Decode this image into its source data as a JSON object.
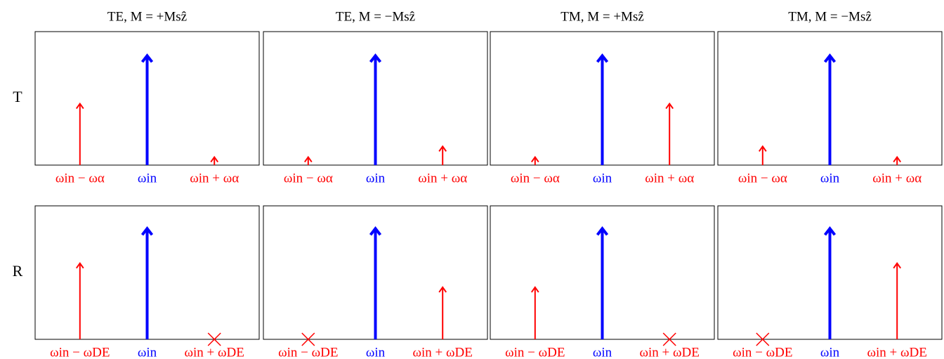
{
  "column_titles": [
    "TE,  M = +Msẑ",
    "TE,  M = −Msẑ",
    "TM,  M = +Msẑ",
    "TM,  M = −Msẑ"
  ],
  "row_labels": [
    "T",
    "R"
  ],
  "chart_data": [
    {
      "type": "arrow",
      "categories": [
        "ωin − ωα",
        "ωin",
        "ωin + ωα"
      ],
      "values": [
        0.46,
        0.82,
        0.06
      ],
      "colors": [
        "#ff0000",
        "#0000ff",
        "#ff0000"
      ],
      "ylim": [
        0,
        1
      ]
    },
    {
      "type": "arrow",
      "categories": [
        "ωin − ωα",
        "ωin",
        "ωin + ωα"
      ],
      "values": [
        0.06,
        0.82,
        0.14
      ],
      "colors": [
        "#ff0000",
        "#0000ff",
        "#ff0000"
      ],
      "ylim": [
        0,
        1
      ]
    },
    {
      "type": "arrow",
      "categories": [
        "ωin − ωα",
        "ωin",
        "ωin + ωα"
      ],
      "values": [
        0.06,
        0.82,
        0.46
      ],
      "colors": [
        "#ff0000",
        "#0000ff",
        "#ff0000"
      ],
      "ylim": [
        0,
        1
      ]
    },
    {
      "type": "arrow",
      "categories": [
        "ωin − ωα",
        "ωin",
        "ωin + ωα"
      ],
      "values": [
        0.14,
        0.82,
        0.06
      ],
      "colors": [
        "#ff0000",
        "#0000ff",
        "#ff0000"
      ],
      "ylim": [
        0,
        1
      ]
    },
    {
      "type": "arrow",
      "categories": [
        "ωin − ωDE",
        "ωin",
        "ωin + ωDE"
      ],
      "values": [
        0.57,
        0.83,
        0
      ],
      "colors": [
        "#ff0000",
        "#0000ff",
        "#ff0000"
      ],
      "ylim": [
        0,
        1
      ]
    },
    {
      "type": "arrow",
      "categories": [
        "ωin − ωDE",
        "ωin",
        "ωin + ωDE"
      ],
      "values": [
        0,
        0.83,
        0.39
      ],
      "colors": [
        "#ff0000",
        "#0000ff",
        "#ff0000"
      ],
      "ylim": [
        0,
        1
      ]
    },
    {
      "type": "arrow",
      "categories": [
        "ωin − ωDE",
        "ωin",
        "ωin + ωDE"
      ],
      "values": [
        0.39,
        0.83,
        0
      ],
      "colors": [
        "#ff0000",
        "#0000ff",
        "#ff0000"
      ],
      "ylim": [
        0,
        1
      ]
    },
    {
      "type": "arrow",
      "categories": [
        "ωin − ωDE",
        "ωin",
        "ωin + ωDE"
      ],
      "values": [
        0,
        0.83,
        0.57
      ],
      "colors": [
        "#ff0000",
        "#0000ff",
        "#ff0000"
      ],
      "ylim": [
        0,
        1
      ]
    }
  ]
}
